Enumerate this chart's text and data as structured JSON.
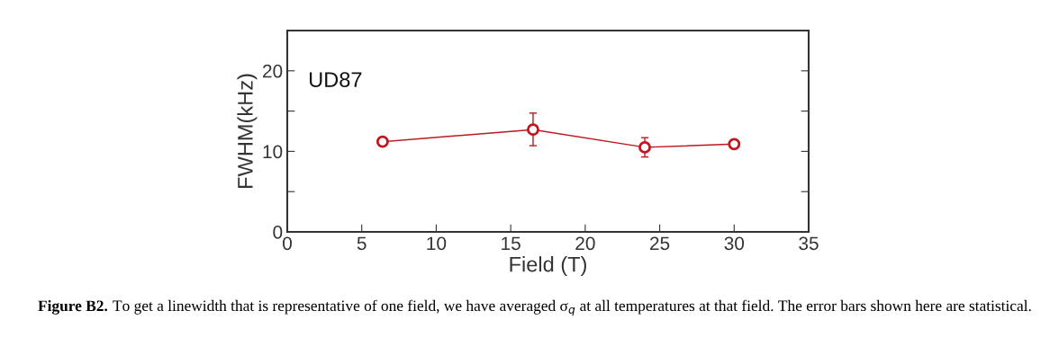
{
  "chart_data": {
    "type": "line",
    "xlabel": "Field (T)",
    "ylabel": "FWHM(kHz)",
    "x": [
      6.4,
      16.5,
      24.0,
      30.0
    ],
    "series": [
      {
        "color": "#c0161e",
        "values": [
          11.2,
          12.7,
          10.5,
          10.9
        ],
        "errors": [
          null,
          [
            10.7,
            14.75
          ],
          [
            9.3,
            11.7
          ],
          null
        ]
      }
    ],
    "xlim": [
      0,
      35
    ],
    "xticks": [
      0,
      5,
      10,
      15,
      20,
      25,
      30,
      35
    ],
    "ylim": [
      0,
      25
    ],
    "yticks": [
      0,
      {
        "value": 5,
        "label": null
      },
      10,
      {
        "value": 15,
        "label": null
      },
      20
    ],
    "marker": "circle",
    "line_style": "solid",
    "grid": false,
    "legend": false,
    "annotations": [
      "UD87",
      "Figure B2.",
      "To get a linewidth that is representative of one field, we have averaged σ$_{q}$ at all temperatures at that field. The error bars shown here are statistical."
    ]
  }
}
